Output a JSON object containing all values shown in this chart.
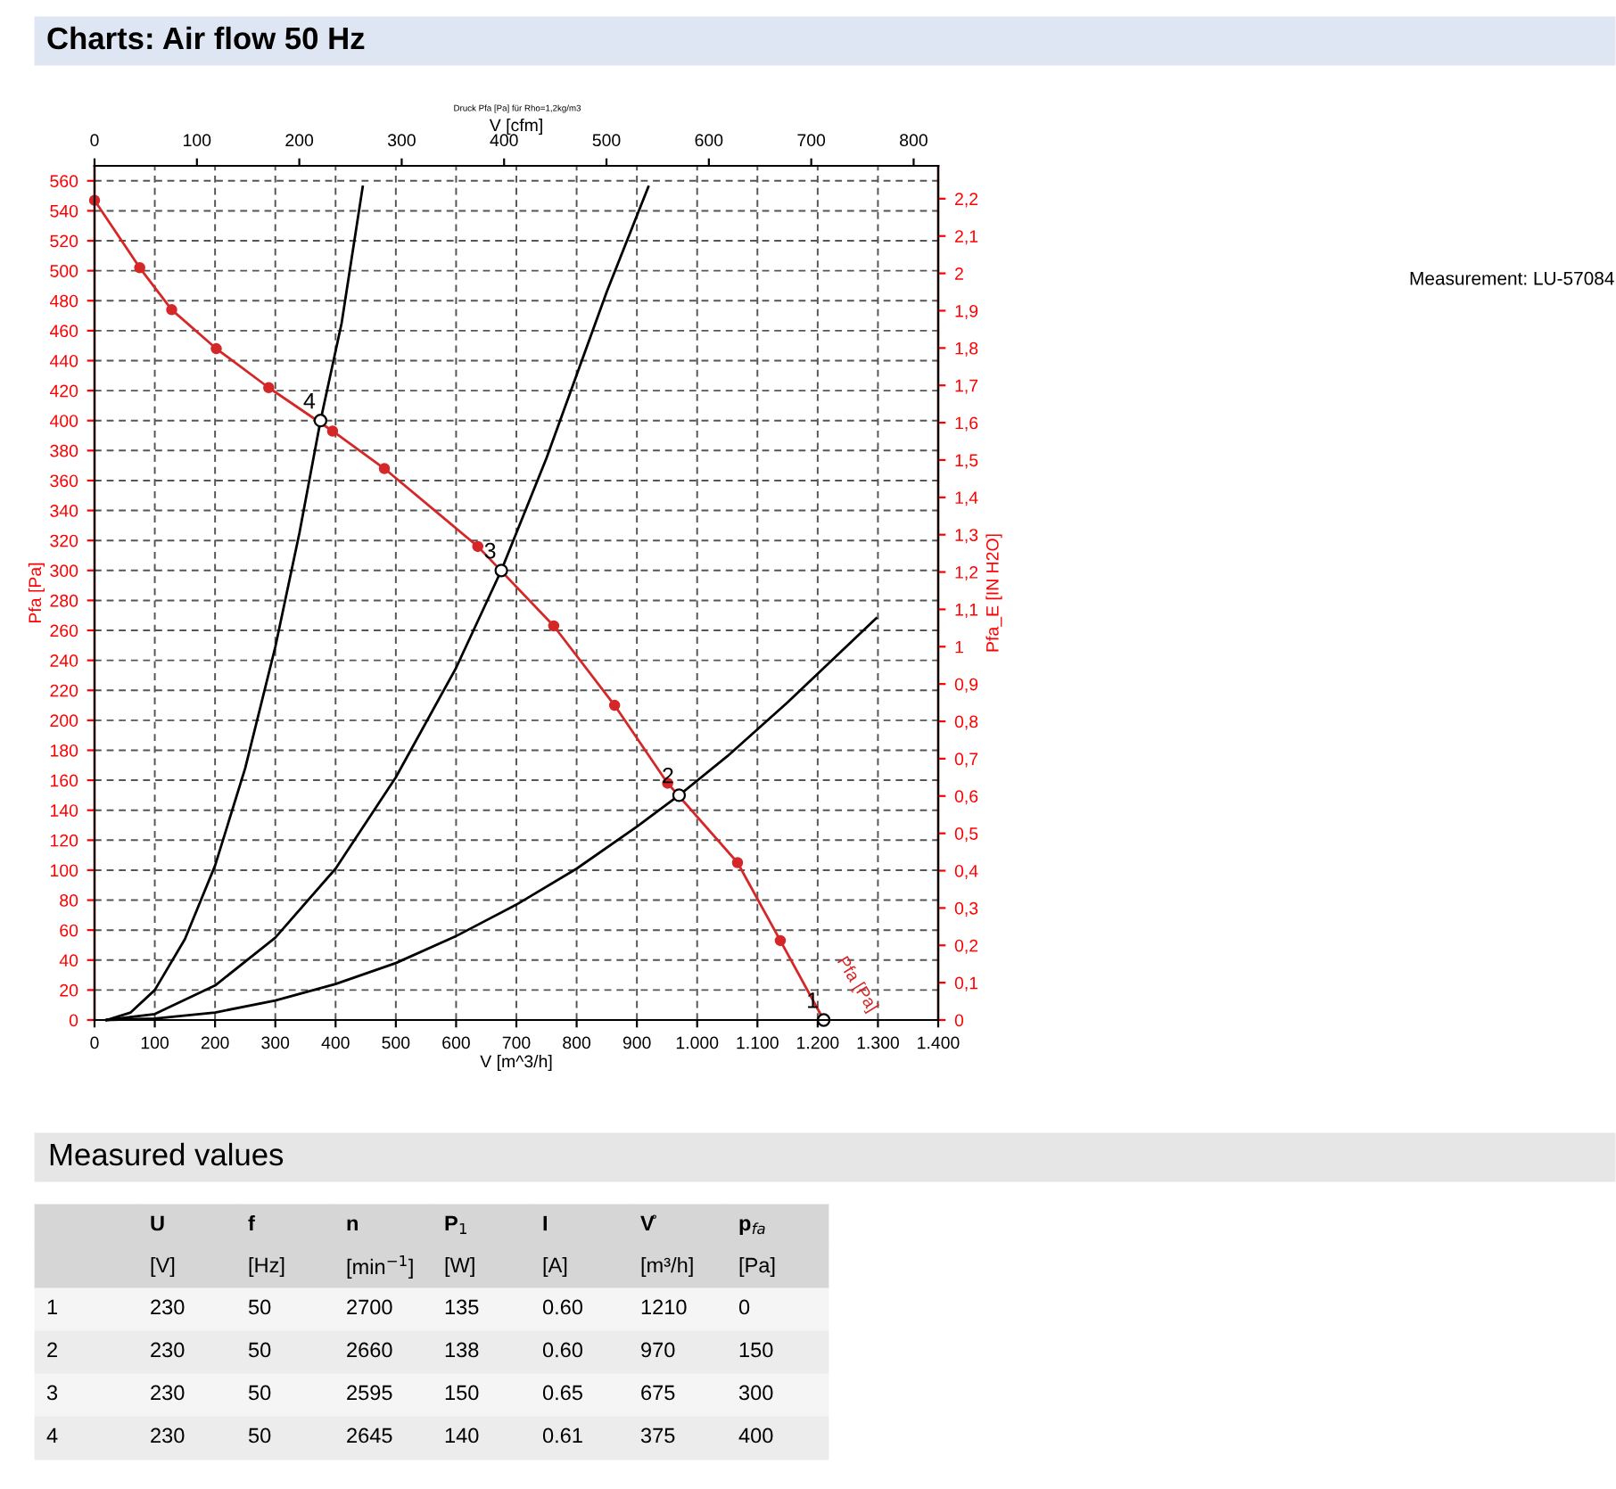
{
  "chart_data": {
    "type": "line",
    "title": "Charts: Air flow 50 Hz",
    "xlabel": "V [m^3/h]",
    "ylabel": "Pfa [Pa]",
    "y2label": "Pfa_E [IN H2O]",
    "x2label": "V [cfm]",
    "xlim": [
      0,
      1400
    ],
    "xticks": [
      0,
      100,
      200,
      300,
      400,
      500,
      600,
      700,
      800,
      900,
      {
        "value": 1000,
        "label": "1.000"
      },
      {
        "value": 1100,
        "label": "1.100"
      },
      {
        "value": 1200,
        "label": "1.200"
      },
      {
        "value": 1300,
        "label": "1.300"
      },
      {
        "value": 1400,
        "label": "1.400"
      }
    ],
    "x2lim": [
      0,
      824
    ],
    "x2ticks": [
      0,
      100,
      200,
      300,
      400,
      500,
      600,
      700,
      800
    ],
    "ylim": [
      0,
      570
    ],
    "yticks": [
      0,
      20,
      40,
      60,
      80,
      100,
      120,
      140,
      160,
      180,
      200,
      220,
      240,
      260,
      280,
      300,
      320,
      340,
      360,
      380,
      400,
      420,
      440,
      460,
      480,
      500,
      520,
      540,
      560
    ],
    "y2lim": [
      0,
      2.288
    ],
    "y2ticks": [
      0,
      {
        "value": 0.1,
        "label": "0,1"
      },
      {
        "value": 0.2,
        "label": "0,2"
      },
      {
        "value": 0.3,
        "label": "0,3"
      },
      {
        "value": 0.4,
        "label": "0,4"
      },
      {
        "value": 0.5,
        "label": "0,5"
      },
      {
        "value": 0.6,
        "label": "0,6"
      },
      {
        "value": 0.7,
        "label": "0,7"
      },
      {
        "value": 0.8,
        "label": "0,8"
      },
      {
        "value": 0.9,
        "label": "0,9"
      },
      1,
      {
        "value": 1.1,
        "label": "1,1"
      },
      {
        "value": 1.2,
        "label": "1,2"
      },
      {
        "value": 1.3,
        "label": "1,3"
      },
      {
        "value": 1.4,
        "label": "1,4"
      },
      {
        "value": 1.5,
        "label": "1,5"
      },
      {
        "value": 1.6,
        "label": "1,6"
      },
      {
        "value": 1.7,
        "label": "1,7"
      },
      {
        "value": 1.8,
        "label": "1,8"
      },
      {
        "value": 1.9,
        "label": "1,9"
      },
      2,
      {
        "value": 2.1,
        "label": "2,1"
      },
      {
        "value": 2.2,
        "label": "2,2"
      }
    ],
    "grid": true,
    "series": [
      {
        "name": "Pfa [Pa]",
        "color": "#d62728",
        "marker": "circle",
        "x": [
          0,
          75,
          128,
          202,
          289,
          395,
          481,
          636,
          762,
          863,
          951,
          1067,
          1138,
          1210
        ],
        "values": [
          547,
          502,
          474,
          448,
          422,
          393,
          368,
          316,
          263,
          210,
          158,
          105,
          53,
          0
        ]
      },
      {
        "color": "#000000",
        "marker": "none",
        "x": [
          20,
          60,
          100,
          150,
          200,
          250,
          300,
          340,
          375,
          410,
          445
        ],
        "values": [
          0,
          5,
          20,
          54,
          103,
          168,
          249,
          325,
          400,
          465,
          556
        ]
      },
      {
        "color": "#000000",
        "marker": "none",
        "x": [
          20,
          100,
          200,
          300,
          400,
          500,
          600,
          675,
          750,
          850,
          919
        ],
        "values": [
          0,
          4,
          23,
          55,
          101,
          162,
          235,
          300,
          375,
          486,
          556
        ]
      },
      {
        "color": "#000000",
        "marker": "none",
        "x": [
          20,
          100,
          200,
          300,
          400,
          500,
          600,
          700,
          800,
          900,
          970,
          1050,
          1150,
          1297
        ],
        "values": [
          0,
          1,
          5,
          13,
          24,
          38,
          56,
          77,
          101,
          129,
          150,
          176,
          212,
          268
        ]
      },
      {
        "type": "scatter",
        "color": "#000000",
        "marker": "circle",
        "x": [
          1210,
          970,
          675,
          375
        ],
        "values": [
          0,
          150,
          300,
          400
        ]
      }
    ],
    "annotations": [
      {
        "text": "1",
        "x": 1210,
        "y": 0
      },
      {
        "text": "2",
        "x": 970,
        "y": 150
      },
      {
        "text": "3",
        "x": 675,
        "y": 300
      },
      {
        "text": "4",
        "x": 375,
        "y": 400
      },
      "Measurement: LU-57084",
      "Druck Pfa [Pa] für Rho=1,2kg/m3",
      "Measured values",
      "U",
      "f",
      "n",
      "P$_{1}$",
      "I",
      "V̊",
      "p$_{fa}$",
      "[V]",
      "[Hz]",
      "[min$^{−1}$]",
      "[W]",
      "[A]",
      "[m³/h]",
      "[Pa]",
      "1",
      "230",
      "50",
      "2700",
      "135",
      "0.60",
      "1210",
      "0",
      "2",
      "230",
      "50",
      "2660",
      "138",
      "0.60",
      "970",
      "150",
      "3",
      "230",
      "50",
      "2595",
      "150",
      "0.65",
      "675",
      "300",
      "4",
      "230",
      "50",
      "2645",
      "140",
      "0.61",
      "375",
      "400"
    ]
  }
}
